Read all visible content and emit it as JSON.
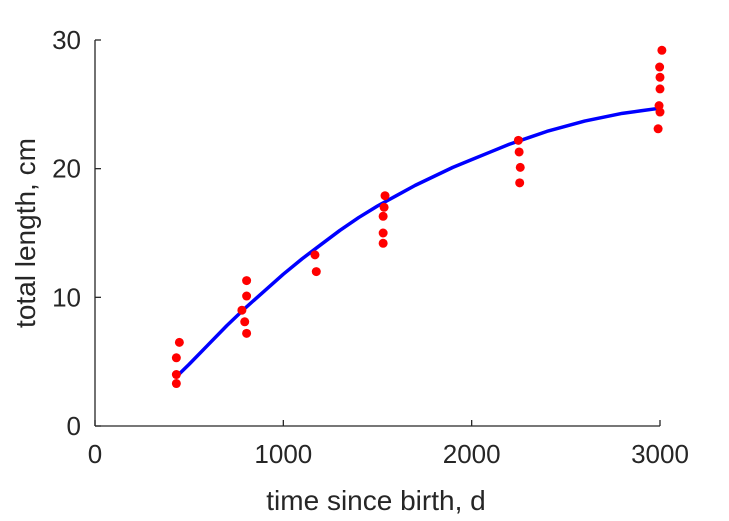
{
  "chart_data": {
    "type": "scatter",
    "title": "",
    "xlabel": "time since birth, d",
    "ylabel": "total length, cm",
    "xlim": [
      0,
      3000
    ],
    "ylim": [
      0,
      30
    ],
    "xticks": [
      0,
      1000,
      2000,
      3000
    ],
    "yticks": [
      0,
      10,
      20,
      30
    ],
    "grid": false,
    "colors": {
      "points": "#ff0000",
      "fit": "#0000ff",
      "axis": "#262626"
    },
    "series": [
      {
        "type": "scatter",
        "points": [
          [
            432,
            3.3
          ],
          [
            432,
            4.0
          ],
          [
            432,
            5.3
          ],
          [
            448,
            6.5
          ],
          [
            780,
            9.0
          ],
          [
            795,
            8.1
          ],
          [
            805,
            7.2
          ],
          [
            805,
            10.1
          ],
          [
            805,
            11.3
          ],
          [
            1168,
            13.3
          ],
          [
            1175,
            12.0
          ],
          [
            1530,
            14.2
          ],
          [
            1530,
            15.0
          ],
          [
            1530,
            16.3
          ],
          [
            1535,
            17.0
          ],
          [
            1540,
            17.9
          ],
          [
            2248,
            22.2
          ],
          [
            2252,
            21.3
          ],
          [
            2258,
            20.1
          ],
          [
            2255,
            18.9
          ],
          [
            2990,
            23.1
          ],
          [
            2995,
            24.9
          ],
          [
            3000,
            24.4
          ],
          [
            3000,
            26.2
          ],
          [
            3000,
            27.1
          ],
          [
            2998,
            27.9
          ],
          [
            3010,
            29.2
          ]
        ]
      },
      {
        "type": "line",
        "x": [
          430,
          500,
          600,
          700,
          800,
          900,
          1000,
          1100,
          1200,
          1300,
          1400,
          1500,
          1600,
          1700,
          1800,
          1900,
          2000,
          2100,
          2200,
          2300,
          2400,
          2500,
          2600,
          2700,
          2800,
          2900,
          3000
        ],
        "y": [
          3.8,
          4.8,
          6.3,
          7.8,
          9.2,
          10.5,
          11.8,
          13.0,
          14.1,
          15.2,
          16.2,
          17.1,
          17.9,
          18.7,
          19.4,
          20.1,
          20.7,
          21.3,
          21.9,
          22.4,
          22.9,
          23.3,
          23.7,
          24.0,
          24.3,
          24.5,
          24.7
        ]
      }
    ]
  }
}
